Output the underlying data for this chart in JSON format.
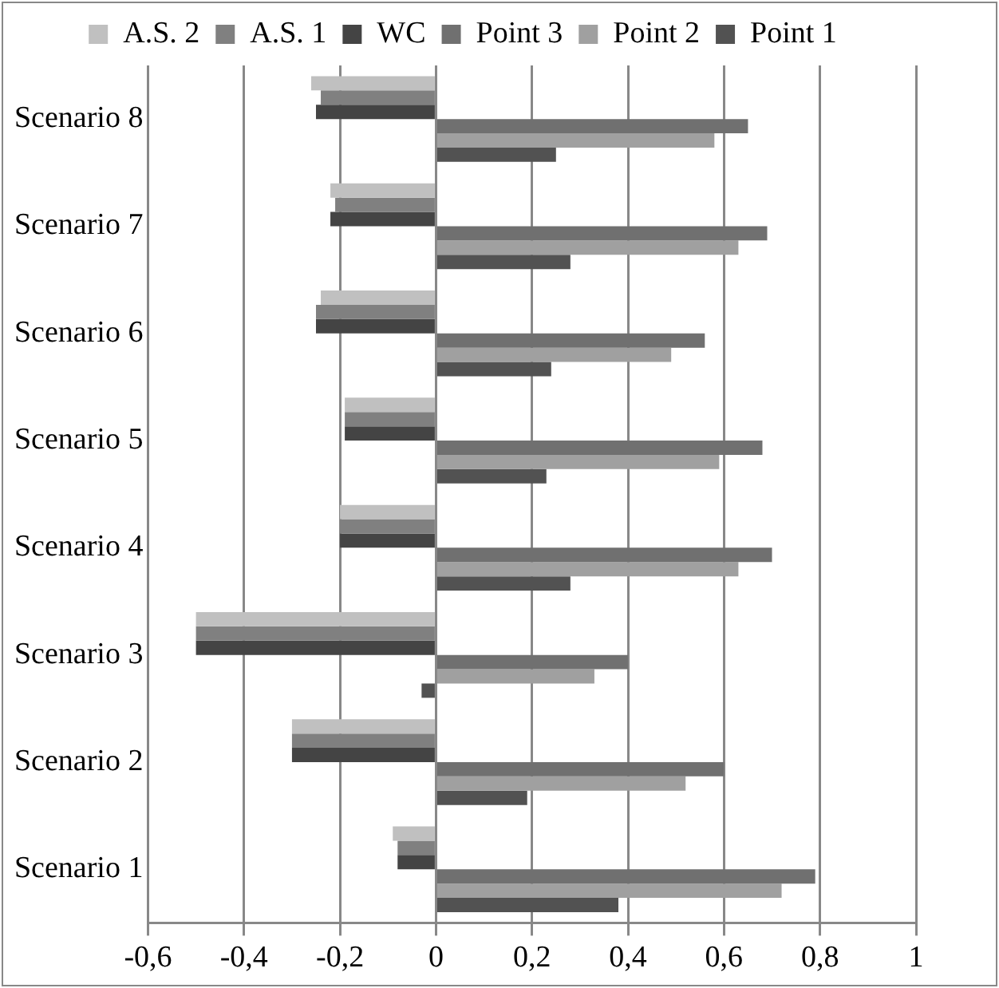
{
  "chart_data": {
    "type": "bar",
    "orientation": "horizontal",
    "categories": [
      "Scenario 8",
      "Scenario 7",
      "Scenario 6",
      "Scenario 5",
      "Scenario 4",
      "Scenario 3",
      "Scenario 2",
      "Scenario 1"
    ],
    "series": [
      {
        "name": "A.S. 2",
        "color": "#c0c0c0",
        "values": [
          -0.26,
          -0.22,
          -0.24,
          -0.19,
          -0.2,
          -0.5,
          -0.3,
          -0.09
        ]
      },
      {
        "name": "A.S. 1",
        "color": "#808080",
        "values": [
          -0.24,
          -0.21,
          -0.25,
          -0.19,
          -0.2,
          -0.5,
          -0.3,
          -0.08
        ]
      },
      {
        "name": "WC",
        "color": "#444444",
        "values": [
          -0.25,
          -0.22,
          -0.25,
          -0.19,
          -0.2,
          -0.5,
          -0.3,
          -0.08
        ]
      },
      {
        "name": "Point 3",
        "color": "#707070",
        "values": [
          0.65,
          0.69,
          0.56,
          0.68,
          0.7,
          0.4,
          0.6,
          0.79
        ]
      },
      {
        "name": "Point 2",
        "color": "#a0a0a0",
        "values": [
          0.58,
          0.63,
          0.49,
          0.59,
          0.63,
          0.33,
          0.52,
          0.72
        ]
      },
      {
        "name": "Point 1",
        "color": "#525252",
        "values": [
          0.25,
          0.28,
          0.24,
          0.23,
          0.28,
          -0.03,
          0.19,
          0.38
        ]
      }
    ],
    "xlim": [
      -0.6,
      1
    ],
    "xticks": [
      {
        "value": -0.6,
        "label": "-0,6"
      },
      {
        "value": -0.4,
        "label": "-0,4"
      },
      {
        "value": -0.2,
        "label": "-0,2"
      },
      0,
      {
        "value": 0.2,
        "label": "0,2"
      },
      {
        "value": 0.4,
        "label": "0,4"
      },
      {
        "value": 0.6,
        "label": "0,6"
      },
      {
        "value": 0.8,
        "label": "0,8"
      },
      1
    ],
    "grid": "x",
    "legend": "top"
  }
}
